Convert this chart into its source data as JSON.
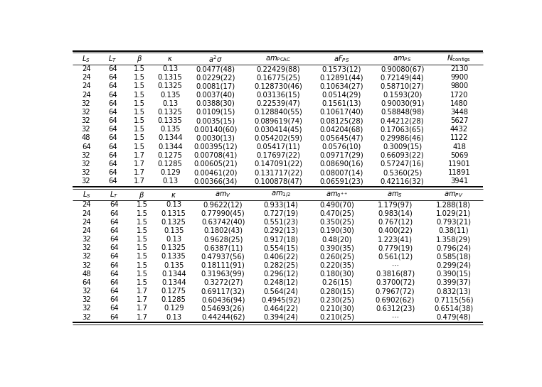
{
  "table1_headers": [
    "$L_S$",
    "$L_T$",
    "$\\beta$",
    "$\\kappa$",
    "$a^2\\sigma$",
    "$am_{\\rm PCAC}$",
    "$aF_{PS}$",
    "$am_{PS}$",
    "$N_{\\rm configs}$"
  ],
  "table1_rows": [
    [
      "24",
      "64",
      "1.5",
      "0.13",
      "0.0477(48)",
      "0.22429(88)",
      "0.1573(12)",
      "0.90080(67)",
      "2130"
    ],
    [
      "24",
      "64",
      "1.5",
      "0.1315",
      "0.0229(22)",
      "0.16775(25)",
      "0.12891(44)",
      "0.72149(44)",
      "9900"
    ],
    [
      "24",
      "64",
      "1.5",
      "0.1325",
      "0.0081(17)",
      "0.128730(46)",
      "0.10634(27)",
      "0.58710(27)",
      "9800"
    ],
    [
      "24",
      "64",
      "1.5",
      "0.135",
      "0.0037(40)",
      "0.03136(15)",
      "0.0514(29)",
      "0.1593(20)",
      "1720"
    ],
    [
      "32",
      "64",
      "1.5",
      "0.13",
      "0.0388(30)",
      "0.22539(47)",
      "0.1561(13)",
      "0.90030(91)",
      "1480"
    ],
    [
      "32",
      "64",
      "1.5",
      "0.1325",
      "0.0109(15)",
      "0.128840(55)",
      "0.10617(40)",
      "0.58848(98)",
      "3448"
    ],
    [
      "32",
      "64",
      "1.5",
      "0.1335",
      "0.0035(15)",
      "0.089619(74)",
      "0.08125(28)",
      "0.44212(28)",
      "5627"
    ],
    [
      "32",
      "64",
      "1.5",
      "0.135",
      "0.00140(60)",
      "0.030414(45)",
      "0.04204(68)",
      "0.17063(65)",
      "4432"
    ],
    [
      "48",
      "64",
      "1.5",
      "0.1344",
      "0.0030(13)",
      "0.054202(59)",
      "0.05645(47)",
      "0.29986(46)",
      "1122"
    ],
    [
      "64",
      "64",
      "1.5",
      "0.1344",
      "0.00395(12)",
      "0.05417(11)",
      "0.0576(10)",
      "0.3009(15)",
      "418"
    ],
    [
      "32",
      "64",
      "1.7",
      "0.1275",
      "0.00708(41)",
      "0.17697(22)",
      "0.09717(29)",
      "0.66093(22)",
      "5069"
    ],
    [
      "32",
      "64",
      "1.7",
      "0.1285",
      "0.00605(21)",
      "0.147091(22)",
      "0.08690(16)",
      "0.57247(16)",
      "11901"
    ],
    [
      "32",
      "64",
      "1.7",
      "0.129",
      "0.00461(20)",
      "0.131717(22)",
      "0.08007(14)",
      "0.5360(25)",
      "11891"
    ],
    [
      "32",
      "64",
      "1.7",
      "0.13",
      "0.00366(34)",
      "0.100878(47)",
      "0.06591(23)",
      "0.42116(32)",
      "3941"
    ]
  ],
  "table2_headers": [
    "$L_S$",
    "$L_T$",
    "$\\beta$",
    "$\\kappa$",
    "$am_V$",
    "$am_{1/2}$",
    "$am_{0^{++}}$",
    "$am_S$",
    "$am_{PV}$"
  ],
  "table2_rows": [
    [
      "24",
      "64",
      "1.5",
      "0.13",
      "0.9622(12)",
      "0.933(14)",
      "0.490(70)",
      "1.179(97)",
      "1.288(18)"
    ],
    [
      "24",
      "64",
      "1.5",
      "0.1315",
      "0.77990(45)",
      "0.727(19)",
      "0.470(25)",
      "0.983(14)",
      "1.029(21)"
    ],
    [
      "24",
      "64",
      "1.5",
      "0.1325",
      "0.63742(40)",
      "0.551(23)",
      "0.350(25)",
      "0.767(12)",
      "0.793(21)"
    ],
    [
      "24",
      "64",
      "1.5",
      "0.135",
      "0.1802(43)",
      "0.292(13)",
      "0.190(30)",
      "0.400(22)",
      "0.38(11)"
    ],
    [
      "32",
      "64",
      "1.5",
      "0.13",
      "0.9628(25)",
      "0.917(18)",
      "0.48(20)",
      "1.223(41)",
      "1.358(29)"
    ],
    [
      "32",
      "64",
      "1.5",
      "0.1325",
      "0.6387(11)",
      "0.554(15)",
      "0.390(35)",
      "0.779(19)",
      "0.796(24)"
    ],
    [
      "32",
      "64",
      "1.5",
      "0.1335",
      "0.47937(56)",
      "0.406(22)",
      "0.260(25)",
      "0.561(12)",
      "0.585(18)"
    ],
    [
      "32",
      "64",
      "1.5",
      "0.135",
      "0.18111(91)",
      "0.282(25)",
      "0.220(35)",
      "...",
      "0.299(24)"
    ],
    [
      "48",
      "64",
      "1.5",
      "0.1344",
      "0.31963(99)",
      "0.296(12)",
      "0.180(30)",
      "0.3816(87)",
      "0.390(15)"
    ],
    [
      "64",
      "64",
      "1.5",
      "0.1344",
      "0.3272(27)",
      "0.248(12)",
      "0.26(15)",
      "0.3700(72)",
      "0.399(37)"
    ],
    [
      "32",
      "64",
      "1.7",
      "0.1275",
      "0.69117(32)",
      "0.564(24)",
      "0.280(15)",
      "0.7967(72)",
      "0.832(13)"
    ],
    [
      "32",
      "64",
      "1.7",
      "0.1285",
      "0.60436(94)",
      "0.4945(92)",
      "0.230(25)",
      "0.6902(62)",
      "0.7115(56)"
    ],
    [
      "32",
      "64",
      "1.7",
      "0.129",
      "0.54693(26)",
      "0.464(22)",
      "0.210(30)",
      "0.6312(23)",
      "0.6514(38)"
    ],
    [
      "32",
      "64",
      "1.7",
      "0.13",
      "0.44244(62)",
      "0.394(24)",
      "0.210(25)",
      "...",
      "0.479(48)"
    ]
  ],
  "ellipsis": "⋯",
  "bg_color": "#ffffff"
}
